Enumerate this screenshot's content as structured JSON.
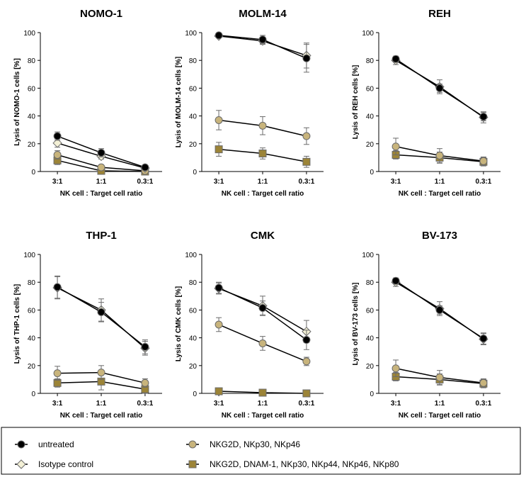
{
  "x_label": "NK cell : Target cell ratio",
  "categories": [
    "3:1",
    "1:1",
    "0.3:1"
  ],
  "y_ticks": [
    0,
    20,
    40,
    60,
    80,
    100
  ],
  "ylim": [
    0,
    100
  ],
  "series_styles": [
    {
      "key": "untreated",
      "label": "untreated",
      "marker": "circle",
      "color": "#000000"
    },
    {
      "key": "isotype",
      "label": "Isotype control",
      "marker": "diamond",
      "color": "#f3f0d6"
    },
    {
      "key": "nkg2d3",
      "label": "NKG2D, NKp30, NKp46",
      "marker": "circle",
      "color": "#c8b47c"
    },
    {
      "key": "nkg2d6",
      "label": "NKG2D, DNAM-1, NKp30, NKp44, NKp46, NKp80",
      "marker": "square",
      "color": "#9c8437"
    }
  ],
  "chart_data": [
    {
      "type": "line",
      "title": "NOMO-1",
      "ylabel": "Lysis of NOMO-1 cells [%]",
      "xlabel": "NK cell : Target cell ratio",
      "categories": [
        "3:1",
        "1:1",
        "0.3:1"
      ],
      "ylim": [
        0,
        100
      ],
      "series": [
        {
          "name": "untreated",
          "values": [
            25.5,
            13.5,
            3
          ],
          "errors": [
            3,
            3,
            1.5
          ]
        },
        {
          "name": "Isotype control",
          "values": [
            20.5,
            11,
            2.5
          ],
          "errors": [
            3,
            2,
            1.5
          ]
        },
        {
          "name": "NKG2D, NKp30, NKp46",
          "values": [
            12,
            3,
            0.5
          ],
          "errors": [
            3,
            1.5,
            1
          ]
        },
        {
          "name": "NKG2D, DNAM-1, NKp30, NKp44, NKp46, NKp80",
          "values": [
            8,
            0.5,
            0
          ],
          "errors": [
            3,
            1,
            1
          ]
        }
      ]
    },
    {
      "type": "line",
      "title": "MOLM-14",
      "ylabel": "Lysis of MOLM-14 cells [%]",
      "xlabel": "NK cell : Target cell ratio",
      "categories": [
        "3:1",
        "1:1",
        "0.3:1"
      ],
      "ylim": [
        0,
        100
      ],
      "series": [
        {
          "name": "untreated",
          "values": [
            98,
            95,
            81.5
          ],
          "errors": [
            1,
            3,
            10
          ]
        },
        {
          "name": "Isotype control",
          "values": [
            97.5,
            94,
            83.5
          ],
          "errors": [
            1,
            2.5,
            9
          ]
        },
        {
          "name": "NKG2D, NKp30, NKp46",
          "values": [
            37,
            33,
            25.5
          ],
          "errors": [
            7,
            6.5,
            6
          ]
        },
        {
          "name": "NKG2D, DNAM-1, NKp30, NKp44, NKp46, NKp80",
          "values": [
            16,
            13,
            7
          ],
          "errors": [
            5,
            4,
            4
          ]
        }
      ]
    },
    {
      "type": "line",
      "title": "REH",
      "ylabel": "Lysis of REH cells [%]",
      "xlabel": "NK cell : Target cell ratio",
      "categories": [
        "3:1",
        "1:1",
        "0.3:1"
      ],
      "ylim": [
        0,
        100
      ],
      "series": [
        {
          "name": "untreated",
          "values": [
            81,
            60,
            39.5
          ],
          "errors": [
            2,
            3,
            3
          ]
        },
        {
          "name": "Isotype control",
          "values": [
            80,
            61,
            39
          ],
          "errors": [
            3,
            5,
            4
          ]
        },
        {
          "name": "NKG2D, NKp30, NKp46",
          "values": [
            18,
            11.5,
            7.5
          ],
          "errors": [
            6,
            5,
            3
          ]
        },
        {
          "name": "NKG2D, DNAM-1, NKp30, NKp44, NKp46, NKp80",
          "values": [
            12,
            10,
            7
          ],
          "errors": [
            3,
            4,
            3
          ]
        }
      ]
    },
    {
      "type": "line",
      "title": "THP-1",
      "ylabel": "Lysis of THP-1 cells [%]",
      "xlabel": "NK cell : Target cell ratio",
      "categories": [
        "3:1",
        "1:1",
        "0.3:1"
      ],
      "ylim": [
        0,
        100
      ],
      "series": [
        {
          "name": "untreated",
          "values": [
            76.5,
            58.5,
            33.5
          ],
          "errors": [
            8,
            7,
            5
          ]
        },
        {
          "name": "Isotype control",
          "values": [
            76,
            60,
            32.5
          ],
          "errors": [
            8,
            8,
            5
          ]
        },
        {
          "name": "NKG2D, NKp30, NKp46",
          "values": [
            14.5,
            15,
            7.5
          ],
          "errors": [
            5,
            5,
            3
          ]
        },
        {
          "name": "NKG2D, DNAM-1, NKp30, NKp44, NKp46, NKp80",
          "values": [
            7.5,
            8.5,
            3
          ],
          "errors": [
            3,
            6,
            3
          ]
        }
      ]
    },
    {
      "type": "line",
      "title": "CMK",
      "ylabel": "Lysis of CMK cells [%]",
      "xlabel": "NK cell : Target cell ratio",
      "categories": [
        "3:1",
        "1:1",
        "0.3:1"
      ],
      "ylim": [
        0,
        100
      ],
      "series": [
        {
          "name": "untreated",
          "values": [
            76,
            61.5,
            38.5
          ],
          "errors": [
            4,
            5,
            7
          ]
        },
        {
          "name": "Isotype control",
          "values": [
            75.5,
            63,
            44.5
          ],
          "errors": [
            4,
            7,
            8
          ]
        },
        {
          "name": "NKG2D, NKp30, NKp46",
          "values": [
            49.5,
            36,
            23
          ],
          "errors": [
            5,
            5,
            3
          ]
        },
        {
          "name": "NKG2D, DNAM-1, NKp30, NKp44, NKp46, NKp80",
          "values": [
            1.5,
            0.5,
            0
          ],
          "errors": [
            0.5,
            0.5,
            0.5
          ]
        }
      ]
    },
    {
      "type": "line",
      "title": "BV-173",
      "ylabel": "Lysis of BV-173 cells [%]",
      "xlabel": "NK cell : Target cell ratio",
      "categories": [
        "3:1",
        "1:1",
        "0.3:1"
      ],
      "ylim": [
        0,
        100
      ],
      "series": [
        {
          "name": "untreated",
          "values": [
            81,
            60,
            39.5
          ],
          "errors": [
            2,
            3,
            4
          ]
        },
        {
          "name": "Isotype control",
          "values": [
            80,
            61,
            39
          ],
          "errors": [
            3,
            5,
            4
          ]
        },
        {
          "name": "NKG2D, NKp30, NKp46",
          "values": [
            18,
            11.5,
            7.5
          ],
          "errors": [
            6,
            5,
            3
          ]
        },
        {
          "name": "NKG2D, DNAM-1, NKp30, NKp44, NKp46, NKp80",
          "values": [
            12,
            10,
            7
          ],
          "errors": [
            3,
            4,
            3
          ]
        }
      ]
    }
  ]
}
